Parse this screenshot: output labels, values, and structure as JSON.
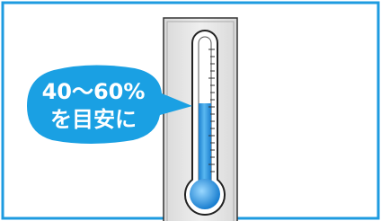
{
  "bubble": {
    "lines": [
      "40〜60%",
      "を目安に"
    ]
  }
}
